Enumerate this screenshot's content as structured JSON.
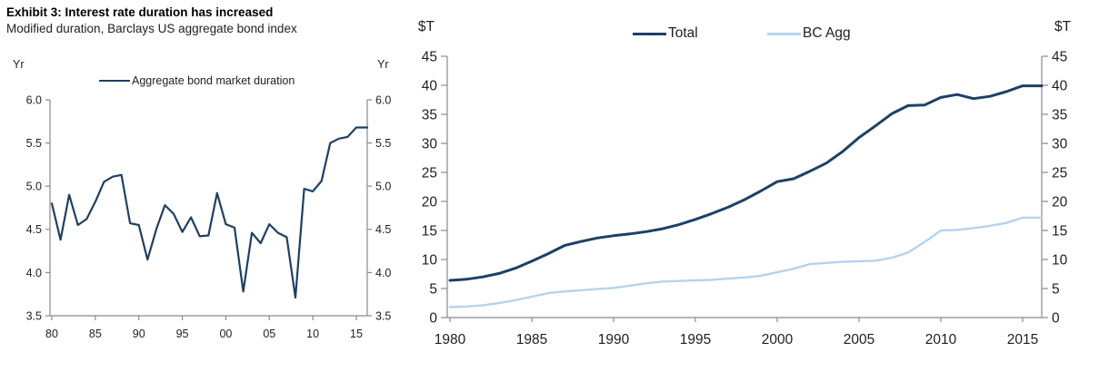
{
  "colors": {
    "navy": "#1d4066",
    "light_blue": "#b5d3ec",
    "axis": "#8a8a8a",
    "tick_text": "#1f1f1f"
  },
  "chart_data": [
    {
      "type": "line",
      "title": "Exhibit 3: Interest rate duration has increased",
      "subtitle": "Modified duration, Barclays US aggregate bond index",
      "y_unit_left": "Yr",
      "y_unit_right": "Yr",
      "xlabel": "",
      "ylabel": "Yr",
      "ylim": [
        3.5,
        6.0
      ],
      "grid": false,
      "legend_position": "top-center",
      "y_ticks": {
        "values": [
          3.5,
          4.0,
          4.5,
          5.0,
          5.5,
          6.0
        ],
        "labels": [
          "3.5",
          "4.0",
          "4.5",
          "5.0",
          "5.5",
          "6.0"
        ]
      },
      "x_ticks": {
        "years": [
          1980,
          1985,
          1990,
          1995,
          2000,
          2005,
          2010,
          2015
        ],
        "labels": [
          "80",
          "85",
          "90",
          "95",
          "00",
          "05",
          "10",
          "15"
        ]
      },
      "years": [
        1980,
        1981,
        1982,
        1983,
        1984,
        1985,
        1986,
        1987,
        1988,
        1989,
        1990,
        1991,
        1992,
        1993,
        1994,
        1995,
        1996,
        1997,
        1998,
        1999,
        2000,
        2001,
        2002,
        2003,
        2004,
        2005,
        2006,
        2007,
        2008,
        2009,
        2010,
        2011,
        2012,
        2013,
        2014,
        2015
      ],
      "series": [
        {
          "name": "Aggregate bond market duration",
          "color": "#1d4066",
          "values": [
            4.8,
            4.38,
            4.9,
            4.55,
            4.62,
            4.82,
            5.05,
            5.11,
            5.13,
            4.57,
            4.55,
            4.15,
            4.5,
            4.78,
            4.68,
            4.47,
            4.64,
            4.42,
            4.43,
            4.92,
            4.56,
            4.52,
            3.78,
            4.46,
            4.34,
            4.56,
            4.46,
            4.41,
            3.71,
            4.97,
            4.94,
            5.06,
            5.5,
            5.55,
            5.57,
            5.68
          ]
        }
      ]
    },
    {
      "type": "line",
      "title": "",
      "subtitle": "",
      "y_unit_left": "$T",
      "y_unit_right": "$T",
      "xlabel": "",
      "ylabel": "$T",
      "ylim": [
        0,
        45
      ],
      "grid": false,
      "legend_position": "top-center",
      "y_ticks": {
        "values": [
          0,
          5,
          10,
          15,
          20,
          25,
          30,
          35,
          40,
          45
        ],
        "labels": [
          "0",
          "5",
          "10",
          "15",
          "20",
          "25",
          "30",
          "35",
          "40",
          "45"
        ]
      },
      "x_ticks": {
        "years": [
          1980,
          1985,
          1990,
          1995,
          2000,
          2005,
          2010,
          2015
        ],
        "labels": [
          "1980",
          "1985",
          "1990",
          "1995",
          "2000",
          "2005",
          "2010",
          "2015"
        ]
      },
      "years": [
        1980,
        1981,
        1982,
        1983,
        1984,
        1985,
        1986,
        1987,
        1988,
        1989,
        1990,
        1991,
        1992,
        1993,
        1994,
        1995,
        1996,
        1997,
        1998,
        1999,
        2000,
        2001,
        2002,
        2003,
        2004,
        2005,
        2006,
        2007,
        2008,
        2009,
        2010,
        2011,
        2012,
        2013,
        2014,
        2015
      ],
      "series": [
        {
          "name": "Total",
          "color": "#1d4066",
          "values": [
            6.4,
            6.6,
            7.0,
            7.6,
            8.5,
            9.7,
            11.0,
            12.4,
            13.1,
            13.7,
            14.1,
            14.4,
            14.8,
            15.3,
            16.0,
            16.9,
            17.9,
            19.0,
            20.3,
            21.8,
            23.4,
            23.9,
            25.2,
            26.6,
            28.6,
            31.0,
            33.0,
            35.1,
            36.5,
            36.6,
            37.9,
            38.4,
            37.7,
            38.1,
            38.9,
            39.9
          ]
        },
        {
          "name": "BC Agg",
          "color": "#b5d3ec",
          "values": [
            1.8,
            1.9,
            2.1,
            2.5,
            3.0,
            3.6,
            4.2,
            4.5,
            4.7,
            4.9,
            5.1,
            5.5,
            5.9,
            6.2,
            6.3,
            6.4,
            6.5,
            6.7,
            6.9,
            7.2,
            7.8,
            8.4,
            9.2,
            9.4,
            9.6,
            9.7,
            9.8,
            10.3,
            11.2,
            13.0,
            15.0,
            15.1,
            15.4,
            15.8,
            16.3,
            17.2
          ]
        }
      ]
    }
  ]
}
